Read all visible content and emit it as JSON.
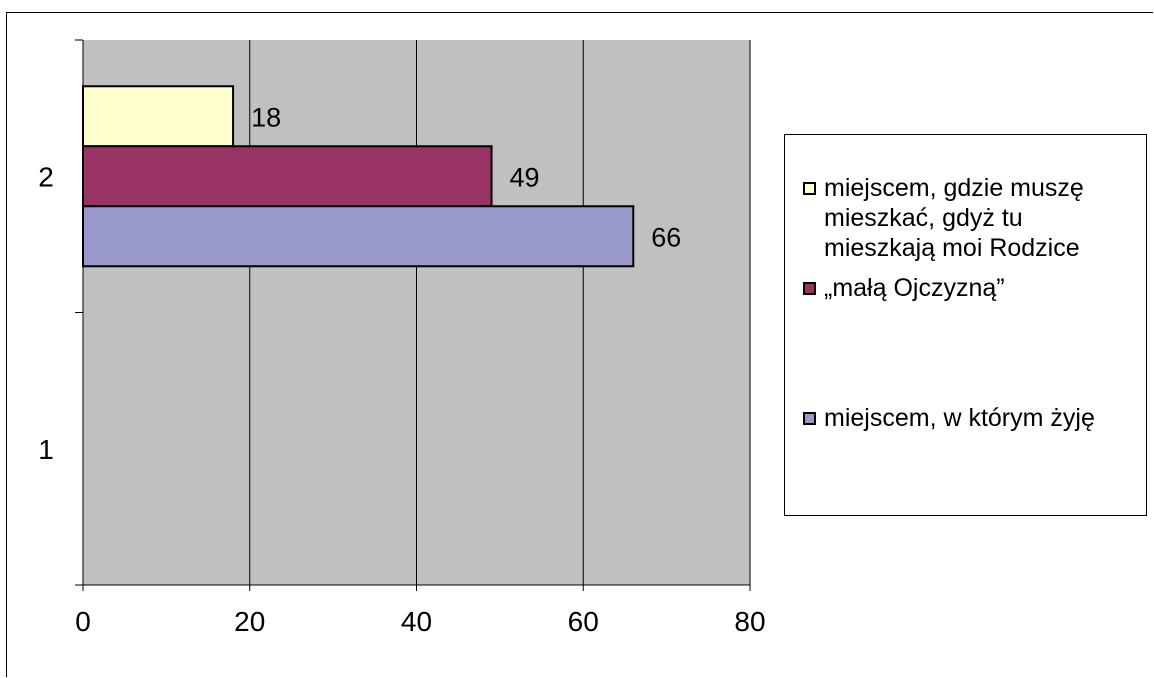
{
  "chart_data": {
    "type": "bar",
    "orientation": "horizontal",
    "categories": [
      "1",
      "2"
    ],
    "series": [
      {
        "name": "miejscem, w którym żyję",
        "values": [
          null,
          66
        ],
        "color": "#9999cc"
      },
      {
        "name": "„małą Ojczyzną”",
        "values": [
          null,
          49
        ],
        "color": "#993366"
      },
      {
        "name": "miejscem, gdzie muszę mieszkać, gdyż tu mieszkają moi Rodzice",
        "values": [
          null,
          18
        ],
        "color": "#ffffcc"
      }
    ],
    "data_labels": [
      "66",
      "49",
      "18"
    ],
    "x_ticks": [
      "0",
      "20",
      "40",
      "60",
      "80"
    ],
    "xlim": [
      0,
      80
    ],
    "grid": true,
    "plot_background": "#c0c0c0",
    "legend_position": "right",
    "title": "",
    "xlabel": "",
    "ylabel": ""
  }
}
